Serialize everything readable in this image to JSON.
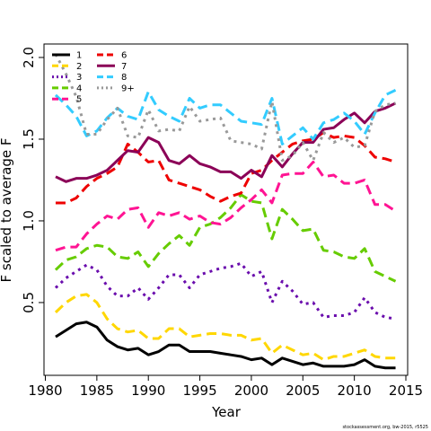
{
  "chart_data": {
    "type": "line",
    "xlabel": "Year",
    "ylabel": "F scaled to average F",
    "xlim": [
      1980,
      2015
    ],
    "ylim": [
      0.0,
      2.1
    ],
    "xticks": [
      "1980",
      "1985",
      "1990",
      "1995",
      "2000",
      "2005",
      "2010",
      "2015"
    ],
    "yticks": [
      "0.5",
      "1.0",
      "1.5",
      "2.0"
    ],
    "legend_placement": "top-left",
    "grid": false,
    "x": [
      1981,
      1982,
      1983,
      1984,
      1985,
      1986,
      1987,
      1988,
      1989,
      1990,
      1991,
      1992,
      1993,
      1994,
      1995,
      1996,
      1997,
      1998,
      1999,
      2000,
      2001,
      2002,
      2003,
      2004,
      2005,
      2006,
      2007,
      2008,
      2009,
      2010,
      2011,
      2012,
      2013,
      2014
    ],
    "series": [
      {
        "name": "1",
        "color": "#000000",
        "dash": "solid",
        "values": [
          0.29,
          0.33,
          0.37,
          0.38,
          0.35,
          0.27,
          0.23,
          0.21,
          0.22,
          0.18,
          0.2,
          0.24,
          0.24,
          0.2,
          0.2,
          0.2,
          0.19,
          0.18,
          0.17,
          0.15,
          0.16,
          0.12,
          0.16,
          0.14,
          0.12,
          0.13,
          0.11,
          0.11,
          0.11,
          0.12,
          0.15,
          0.11,
          0.1,
          0.1
        ]
      },
      {
        "name": "2",
        "color": "#FFD700",
        "dash": "long",
        "values": [
          0.44,
          0.5,
          0.54,
          0.55,
          0.5,
          0.4,
          0.34,
          0.32,
          0.33,
          0.28,
          0.28,
          0.34,
          0.34,
          0.29,
          0.3,
          0.31,
          0.31,
          0.3,
          0.3,
          0.27,
          0.28,
          0.19,
          0.24,
          0.21,
          0.18,
          0.19,
          0.15,
          0.17,
          0.17,
          0.19,
          0.21,
          0.17,
          0.16,
          0.16
        ]
      },
      {
        "name": "3",
        "color": "#6A0DAD",
        "dash": "dot",
        "values": [
          0.59,
          0.65,
          0.69,
          0.73,
          0.7,
          0.6,
          0.54,
          0.54,
          0.59,
          0.52,
          0.59,
          0.67,
          0.67,
          0.59,
          0.67,
          0.69,
          0.71,
          0.72,
          0.74,
          0.66,
          0.69,
          0.5,
          0.63,
          0.57,
          0.49,
          0.5,
          0.41,
          0.42,
          0.42,
          0.44,
          0.53,
          0.44,
          0.41,
          0.4
        ]
      },
      {
        "name": "4",
        "color": "#66CC00",
        "dash": "long",
        "values": [
          0.7,
          0.76,
          0.78,
          0.83,
          0.85,
          0.84,
          0.78,
          0.77,
          0.81,
          0.72,
          0.8,
          0.86,
          0.91,
          0.85,
          0.96,
          0.98,
          1.02,
          1.08,
          1.16,
          1.12,
          1.11,
          0.89,
          1.07,
          1.01,
          0.94,
          0.95,
          0.82,
          0.81,
          0.78,
          0.77,
          0.83,
          0.69,
          0.66,
          0.63
        ]
      },
      {
        "name": "5",
        "color": "#FF1493",
        "dash": "long",
        "values": [
          0.82,
          0.84,
          0.84,
          0.92,
          0.98,
          1.03,
          1.01,
          1.07,
          1.08,
          0.96,
          1.05,
          1.03,
          1.05,
          1.01,
          1.03,
          0.99,
          0.98,
          1.02,
          1.08,
          1.13,
          1.19,
          1.11,
          1.28,
          1.29,
          1.29,
          1.36,
          1.27,
          1.28,
          1.23,
          1.23,
          1.25,
          1.1,
          1.1,
          1.06
        ]
      },
      {
        "name": "6",
        "color": "#EE0000",
        "dash": "long",
        "values": [
          1.11,
          1.11,
          1.14,
          1.21,
          1.26,
          1.29,
          1.33,
          1.47,
          1.42,
          1.36,
          1.37,
          1.25,
          1.23,
          1.21,
          1.19,
          1.15,
          1.12,
          1.15,
          1.17,
          1.29,
          1.31,
          1.37,
          1.42,
          1.47,
          1.49,
          1.5,
          1.54,
          1.51,
          1.52,
          1.51,
          1.46,
          1.39,
          1.38,
          1.36
        ]
      },
      {
        "name": "7",
        "color": "#8B0057",
        "dash": "solid",
        "values": [
          1.27,
          1.24,
          1.26,
          1.26,
          1.28,
          1.31,
          1.37,
          1.43,
          1.42,
          1.51,
          1.48,
          1.37,
          1.35,
          1.4,
          1.35,
          1.33,
          1.3,
          1.3,
          1.26,
          1.31,
          1.27,
          1.4,
          1.33,
          1.41,
          1.48,
          1.48,
          1.56,
          1.57,
          1.62,
          1.66,
          1.6,
          1.67,
          1.69,
          1.72
        ]
      },
      {
        "name": "8",
        "color": "#33CCFF",
        "dash": "long",
        "values": [
          1.77,
          1.71,
          1.64,
          1.52,
          1.55,
          1.63,
          1.69,
          1.64,
          1.62,
          1.79,
          1.68,
          1.64,
          1.61,
          1.75,
          1.69,
          1.71,
          1.71,
          1.66,
          1.61,
          1.6,
          1.59,
          1.75,
          1.47,
          1.52,
          1.57,
          1.5,
          1.6,
          1.62,
          1.66,
          1.61,
          1.53,
          1.66,
          1.77,
          1.8
        ]
      },
      {
        "name": "9+",
        "color": "#999999",
        "dash": "dot",
        "values": [
          2.02,
          1.9,
          1.76,
          1.53,
          1.53,
          1.62,
          1.69,
          1.52,
          1.51,
          1.68,
          1.55,
          1.56,
          1.55,
          1.7,
          1.61,
          1.62,
          1.63,
          1.49,
          1.48,
          1.47,
          1.44,
          1.73,
          1.37,
          1.4,
          1.48,
          1.37,
          1.54,
          1.48,
          1.51,
          1.45,
          1.46,
          1.67,
          1.71,
          1.72
        ]
      }
    ],
    "credit": "stockassessment.org, bw-2015, r5525"
  }
}
